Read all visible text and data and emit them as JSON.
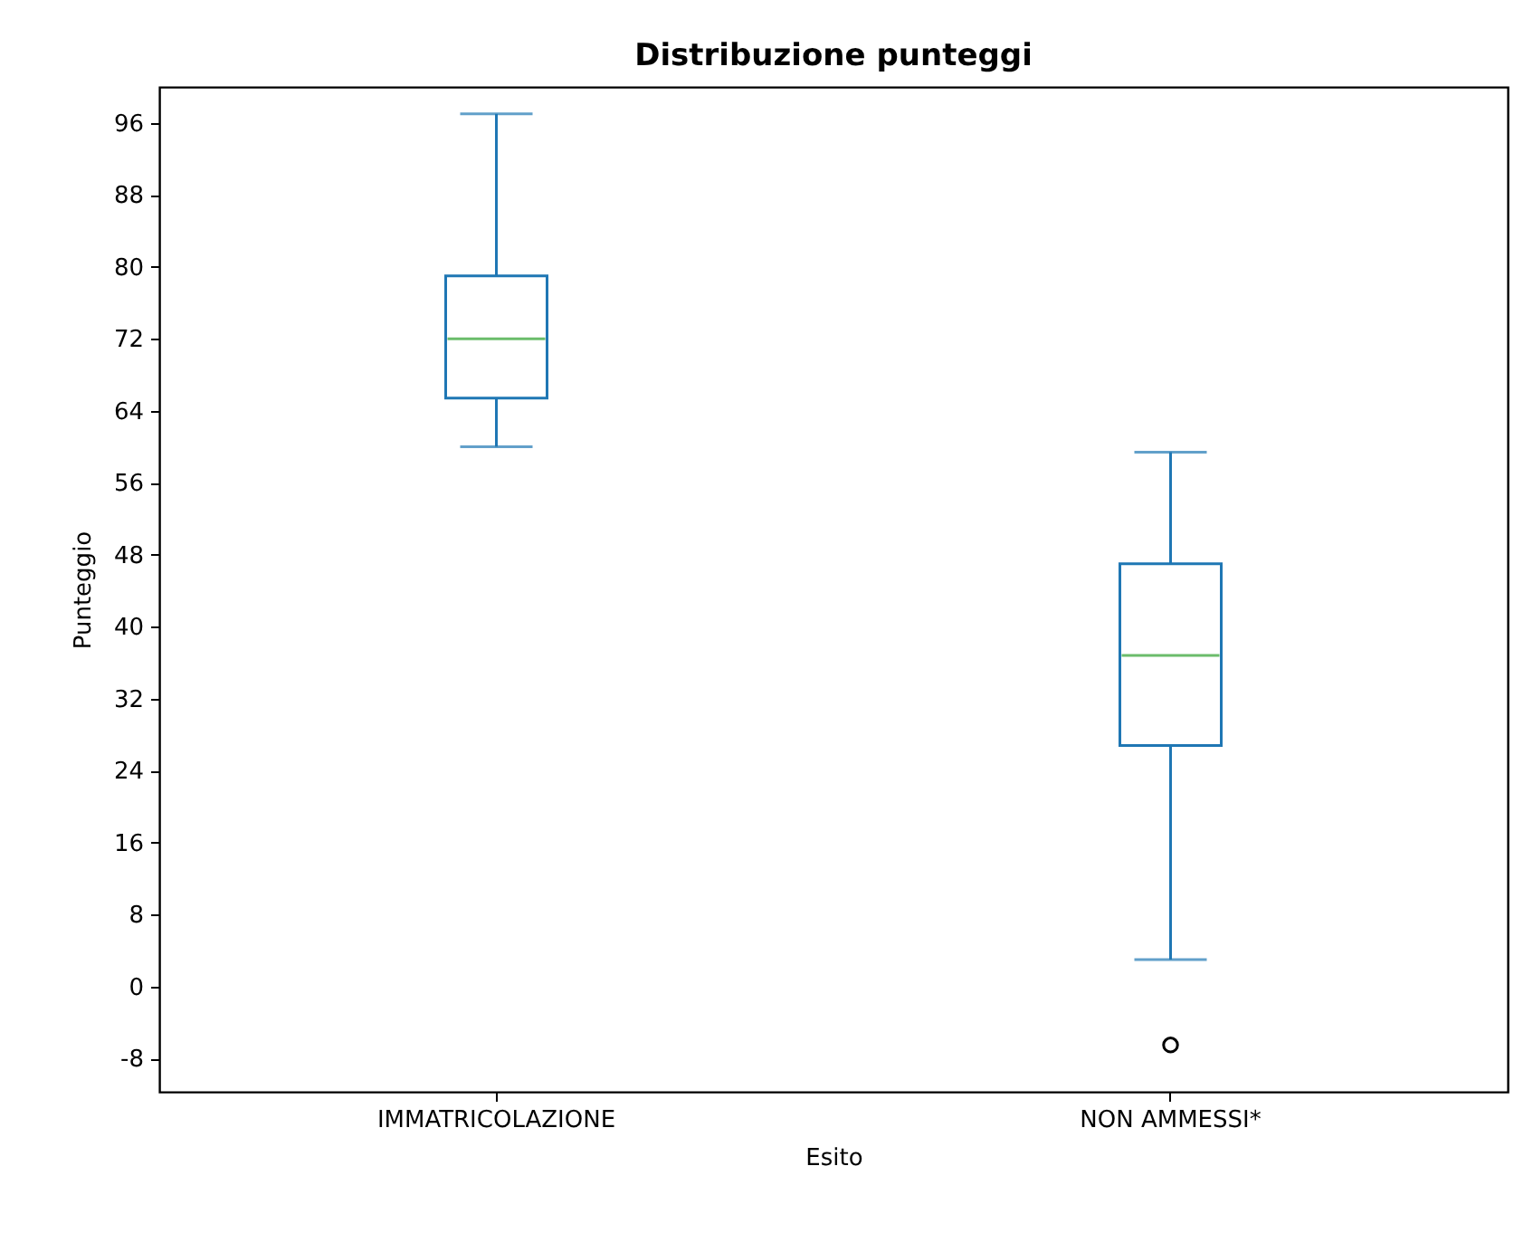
{
  "chart_data": {
    "type": "box",
    "title": "Distribuzione punteggi",
    "xlabel": "Esito",
    "ylabel": "Punteggio",
    "categories": [
      "IMMATRICOLAZIONE",
      "NON AMMESSI*"
    ],
    "series": [
      {
        "color": "#1f77b4",
        "boxes": [
          {
            "low": 60,
            "q1": 65.4,
            "median": 72,
            "q3": 79,
            "high": 97
          },
          {
            "low": 3,
            "q1": 26.8,
            "median": 36.8,
            "q3": 47,
            "high": 59.4,
            "outliers": [
              -6.5
            ]
          }
        ]
      }
    ],
    "ylim": [
      -11.7,
      100
    ],
    "yticks": [
      -8,
      0,
      8,
      16,
      24,
      32,
      40,
      48,
      56,
      64,
      72,
      80,
      88,
      96
    ],
    "grid": false
  }
}
